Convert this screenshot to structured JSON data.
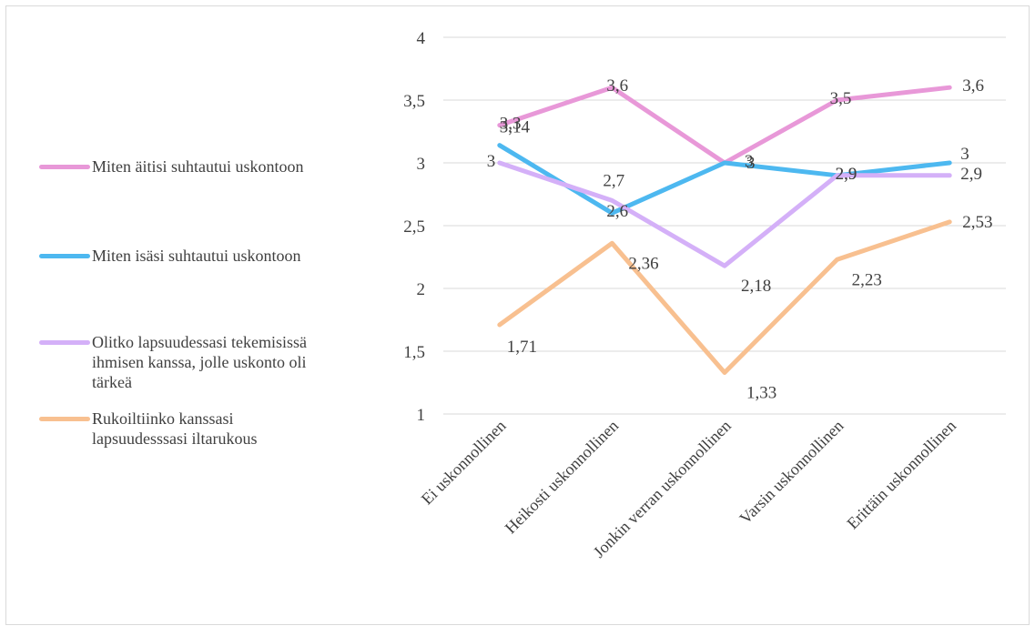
{
  "chart_data": {
    "type": "line",
    "categories": [
      "Ei uskonnollinen",
      "Heikosti uskonnollinen",
      "Jonkin verran uskonnollinen",
      "Varsin uskonnollinen",
      "Erittäin uskonnollinen"
    ],
    "ylim": [
      1,
      4
    ],
    "yticks": [
      "1",
      "1,5",
      "2",
      "2,5",
      "3",
      "3,5",
      "4"
    ],
    "grid": true,
    "legend_position": "left",
    "series": [
      {
        "name": "Miten äitisi suhtautui uskontoon",
        "color": "#e898d8",
        "values": [
          3.3,
          3.6,
          3.0,
          3.5,
          3.6
        ],
        "labels": [
          "3,3",
          "3,6",
          "3",
          "3,5",
          "3,6"
        ]
      },
      {
        "name": "Miten isäsi suhtautui uskontoon",
        "color": "#4db8f0",
        "values": [
          3.14,
          2.6,
          3.0,
          2.9,
          3.0
        ],
        "labels": [
          "3,14",
          "2,6",
          "3",
          "2,9",
          "3"
        ]
      },
      {
        "name": "Olitko lapsuudessasi tekemisissä ihmisen kanssa, jolle uskonto oli tärkeä",
        "color": "#d4b0f8",
        "values": [
          3.0,
          2.7,
          2.18,
          2.9,
          2.9
        ],
        "labels": [
          "3",
          "2,7",
          "2,18",
          "2,9",
          "2,9"
        ]
      },
      {
        "name": "Rukoiltiinko kanssasi lapsuudesssasi iltarukous",
        "color": "#f8c090",
        "values": [
          1.71,
          2.36,
          1.33,
          2.23,
          2.53
        ],
        "labels": [
          "1,71",
          "2,36",
          "1,33",
          "2,23",
          "2,53"
        ]
      }
    ]
  }
}
